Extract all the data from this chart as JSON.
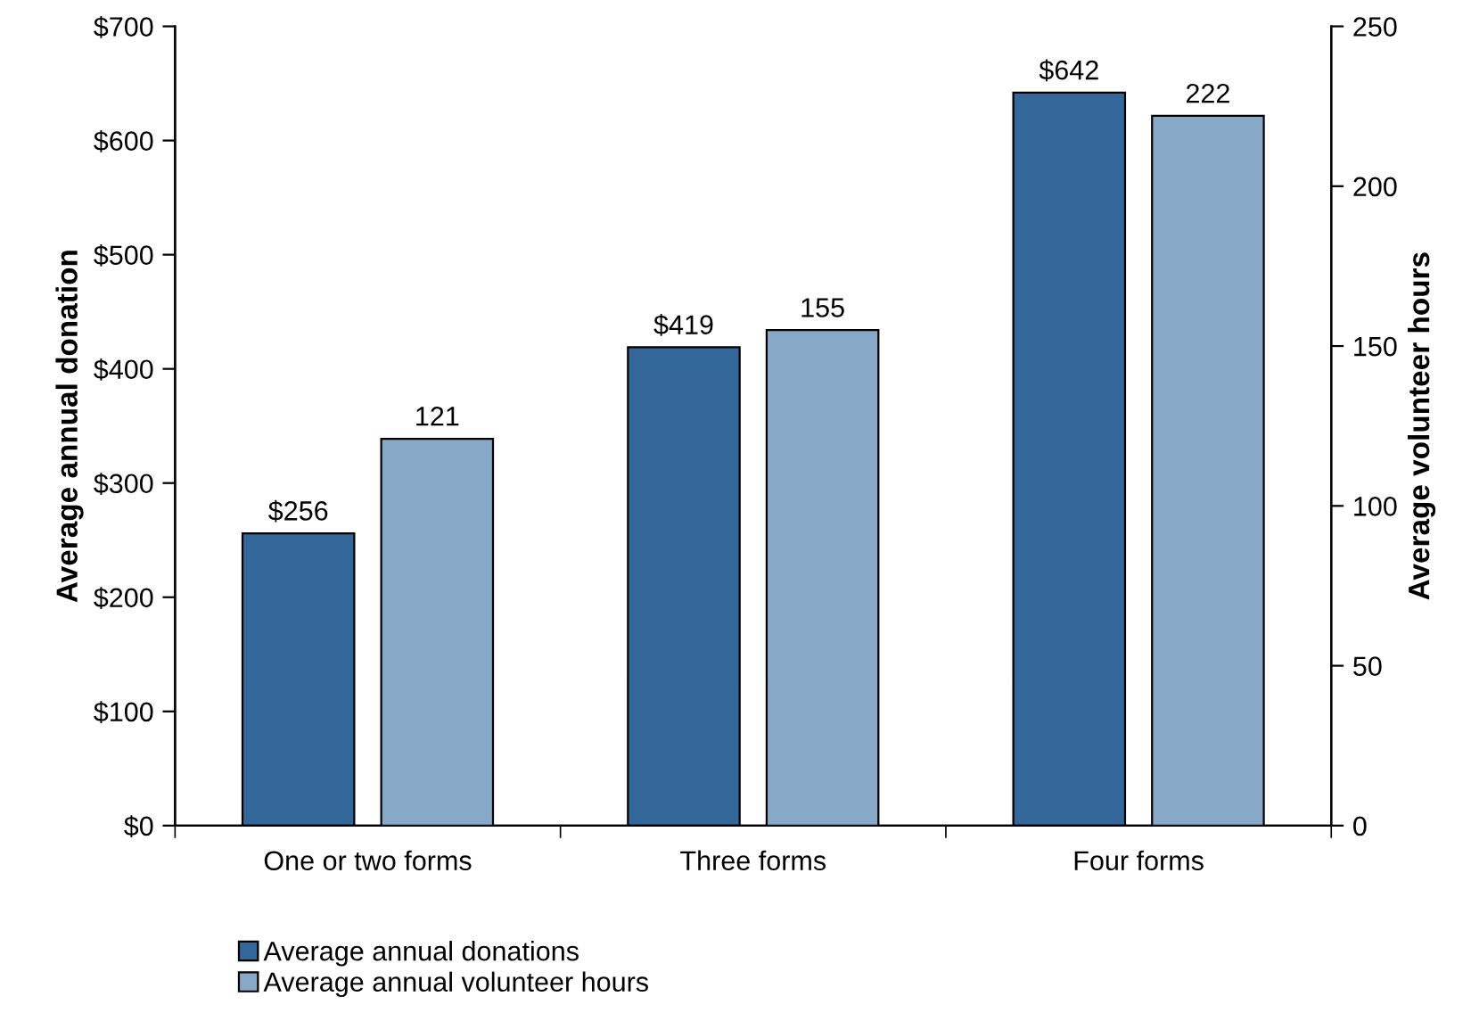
{
  "chart_data": {
    "type": "bar",
    "categories": [
      "One or two forms",
      "Three forms",
      "Four forms"
    ],
    "ylabel": "Average annual donation",
    "y2label": "Average volunteer hours",
    "series": [
      {
        "name": "Average annual donations",
        "color": "#336699",
        "values": [
          256,
          419,
          642
        ],
        "value_labels": [
          "$256",
          "$419",
          "$642"
        ]
      },
      {
        "name": "Average annual volunteer hours",
        "color": "#88a8c8",
        "values": [
          121,
          155,
          222
        ],
        "value_labels": [
          "121",
          "155",
          "222"
        ],
        "axis": "y2"
      }
    ],
    "ylim": [
      0,
      700
    ],
    "yticks": [
      {
        "value": 0,
        "label": "$0"
      },
      {
        "value": 100,
        "label": "$100"
      },
      {
        "value": 200,
        "label": "$200"
      },
      {
        "value": 300,
        "label": "$300"
      },
      {
        "value": 400,
        "label": "$400"
      },
      {
        "value": 500,
        "label": "$500"
      },
      {
        "value": 600,
        "label": "$600"
      },
      {
        "value": 700,
        "label": "$700"
      }
    ],
    "y2lim": [
      0,
      250
    ],
    "y2ticks": [
      0,
      50,
      100,
      150,
      200,
      250
    ],
    "grid": false,
    "legend": "bottom left"
  }
}
